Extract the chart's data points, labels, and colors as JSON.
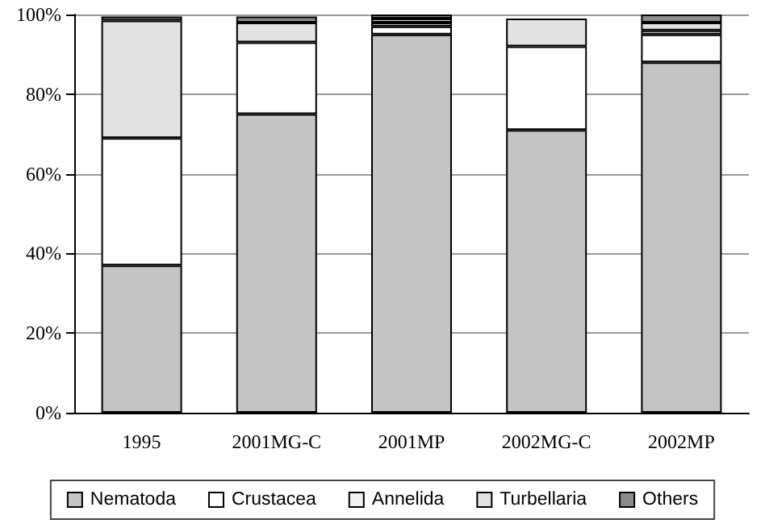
{
  "chart_data": {
    "type": "bar",
    "stacked": true,
    "categories": [
      "1995",
      "2001MG-C",
      "2001MP",
      "2002MG-C",
      "2002MP"
    ],
    "series": [
      {
        "name": "Nematoda",
        "color": "#c4c4c4",
        "values": [
          37,
          75,
          95,
          71,
          88
        ]
      },
      {
        "name": "Crustacea",
        "color": "#ffffff",
        "values": [
          32,
          18,
          2,
          21,
          7
        ]
      },
      {
        "name": "Annelida",
        "color": "#f2f2f2",
        "values": [
          null,
          null,
          1,
          null,
          1
        ]
      },
      {
        "name": "Turbellaria",
        "color": "#e2e2e2",
        "values": [
          29.5,
          5,
          1,
          7,
          2
        ]
      },
      {
        "name": "Others",
        "color": "#8c8c8c",
        "values": [
          1,
          1.5,
          1,
          null,
          2
        ]
      }
    ],
    "ylim": [
      0,
      100
    ],
    "yticks": [
      {
        "value": 0,
        "label": "0%"
      },
      {
        "value": 20,
        "label": "20%"
      },
      {
        "value": 40,
        "label": "40%"
      },
      {
        "value": 60,
        "label": "60%"
      },
      {
        "value": 80,
        "label": "80%"
      },
      {
        "value": 100,
        "label": "100%"
      }
    ],
    "grid": "y",
    "legend": "bottom"
  }
}
